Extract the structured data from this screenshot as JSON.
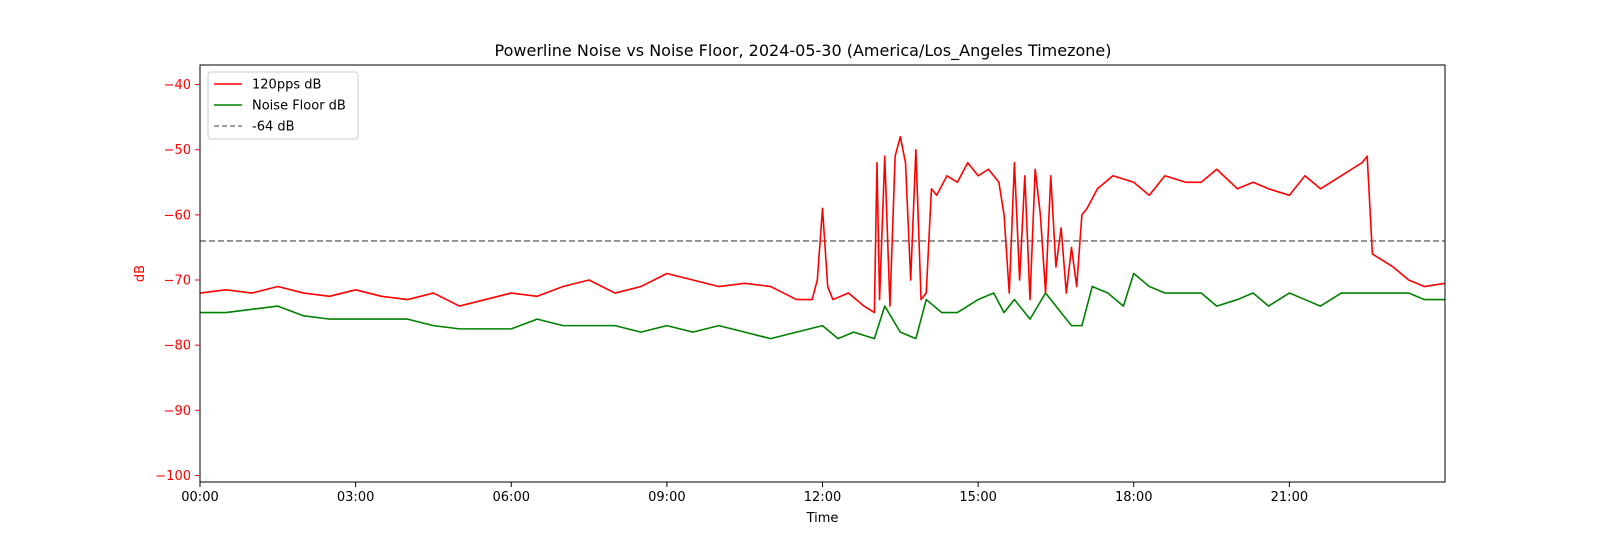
{
  "chart_data": {
    "type": "line",
    "title": "Powerline Noise vs Noise Floor, 2024-05-30 (America/Los_Angeles Timezone)",
    "xlabel": "Time",
    "ylabel": "dB",
    "ylabel_color": "#ff0000",
    "ytick_color": "#ff0000",
    "x_unit": "hours",
    "xlim": [
      0,
      24
    ],
    "ylim": [
      -101,
      -37
    ],
    "x_ticks": [
      {
        "value": 0,
        "label": "00:00"
      },
      {
        "value": 3,
        "label": "03:00"
      },
      {
        "value": 6,
        "label": "06:00"
      },
      {
        "value": 9,
        "label": "09:00"
      },
      {
        "value": 12,
        "label": "12:00"
      },
      {
        "value": 15,
        "label": "15:00"
      },
      {
        "value": 18,
        "label": "18:00"
      },
      {
        "value": 21,
        "label": "21:00"
      }
    ],
    "y_ticks": [
      {
        "value": -40,
        "label": "−40"
      },
      {
        "value": -50,
        "label": "−50"
      },
      {
        "value": -60,
        "label": "−60"
      },
      {
        "value": -70,
        "label": "−70"
      },
      {
        "value": -80,
        "label": "−80"
      },
      {
        "value": -90,
        "label": "−90"
      },
      {
        "value": -100,
        "label": "−100"
      }
    ],
    "grid": false,
    "legend_position": "top-left",
    "series": [
      {
        "name": "120pps dB",
        "color": "#ff0000",
        "style": "solid",
        "x": [
          0,
          0.5,
          1,
          1.5,
          2,
          2.5,
          3,
          3.5,
          4,
          4.5,
          5,
          5.5,
          6,
          6.5,
          7,
          7.5,
          8,
          8.5,
          9,
          9.5,
          10,
          10.5,
          11,
          11.5,
          11.8,
          11.9,
          12.0,
          12.1,
          12.2,
          12.5,
          12.8,
          13.0,
          13.05,
          13.1,
          13.2,
          13.3,
          13.4,
          13.5,
          13.6,
          13.7,
          13.8,
          13.9,
          14.0,
          14.1,
          14.2,
          14.4,
          14.6,
          14.8,
          15.0,
          15.2,
          15.4,
          15.5,
          15.6,
          15.7,
          15.8,
          15.9,
          16.0,
          16.1,
          16.2,
          16.3,
          16.4,
          16.5,
          16.6,
          16.7,
          16.8,
          16.9,
          17.0,
          17.1,
          17.3,
          17.6,
          18.0,
          18.3,
          18.6,
          19.0,
          19.3,
          19.6,
          20.0,
          20.3,
          20.6,
          21.0,
          21.3,
          21.6,
          22.0,
          22.2,
          22.4,
          22.5,
          22.6,
          22.8,
          23.0,
          23.3,
          23.6,
          24.0
        ],
        "values": [
          -72,
          -71.5,
          -72,
          -71,
          -72,
          -72.5,
          -71.5,
          -72.5,
          -73,
          -72,
          -74,
          -73,
          -72,
          -72.5,
          -71,
          -70,
          -72,
          -71,
          -69,
          -70,
          -71,
          -70.5,
          -71,
          -73,
          -73,
          -70,
          -59,
          -71,
          -73,
          -72,
          -74,
          -75,
          -52,
          -73,
          -51,
          -74,
          -51,
          -48,
          -52,
          -70,
          -50,
          -73,
          -72,
          -56,
          -57,
          -54,
          -55,
          -52,
          -54,
          -53,
          -55,
          -60,
          -72,
          -52,
          -70,
          -54,
          -73,
          -53,
          -60,
          -72,
          -54,
          -68,
          -62,
          -72,
          -65,
          -71,
          -60,
          -59,
          -56,
          -54,
          -55,
          -57,
          -54,
          -55,
          -55,
          -53,
          -56,
          -55,
          -56,
          -57,
          -54,
          -56,
          -54,
          -53,
          -52,
          -51,
          -66,
          -67,
          -68,
          -70,
          -71,
          -70.5
        ]
      },
      {
        "name": "Noise Floor dB",
        "color": "#008000",
        "style": "solid",
        "x": [
          0,
          0.5,
          1,
          1.5,
          2,
          2.5,
          3,
          3.5,
          4,
          4.5,
          5,
          5.5,
          6,
          6.5,
          7,
          7.5,
          8,
          8.5,
          9,
          9.5,
          10,
          10.5,
          11,
          11.5,
          12.0,
          12.3,
          12.6,
          13.0,
          13.2,
          13.5,
          13.8,
          14.0,
          14.3,
          14.6,
          15.0,
          15.3,
          15.5,
          15.7,
          16.0,
          16.3,
          16.6,
          16.8,
          17.0,
          17.2,
          17.5,
          17.8,
          18.0,
          18.3,
          18.6,
          19.0,
          19.3,
          19.6,
          20.0,
          20.3,
          20.6,
          21.0,
          21.3,
          21.6,
          22.0,
          22.3,
          22.6,
          23.0,
          23.3,
          23.6,
          24.0
        ],
        "values": [
          -75,
          -75,
          -74.5,
          -74,
          -75.5,
          -76,
          -76,
          -76,
          -76,
          -77,
          -77.5,
          -77.5,
          -77.5,
          -76,
          -77,
          -77,
          -77,
          -78,
          -77,
          -78,
          -77,
          -78,
          -79,
          -78,
          -77,
          -79,
          -78,
          -79,
          -74,
          -78,
          -79,
          -73,
          -75,
          -75,
          -73,
          -72,
          -75,
          -73,
          -76,
          -72,
          -75,
          -77,
          -77,
          -71,
          -72,
          -74,
          -69,
          -71,
          -72,
          -72,
          -72,
          -74,
          -73,
          -72,
          -74,
          -72,
          -73,
          -74,
          -72,
          -72,
          -72,
          -72,
          -72,
          -73,
          -73
        ]
      },
      {
        "name": "-64 dB",
        "color": "#808080",
        "style": "dashed",
        "x": [
          0,
          24
        ],
        "values": [
          -64,
          -64
        ]
      }
    ]
  }
}
